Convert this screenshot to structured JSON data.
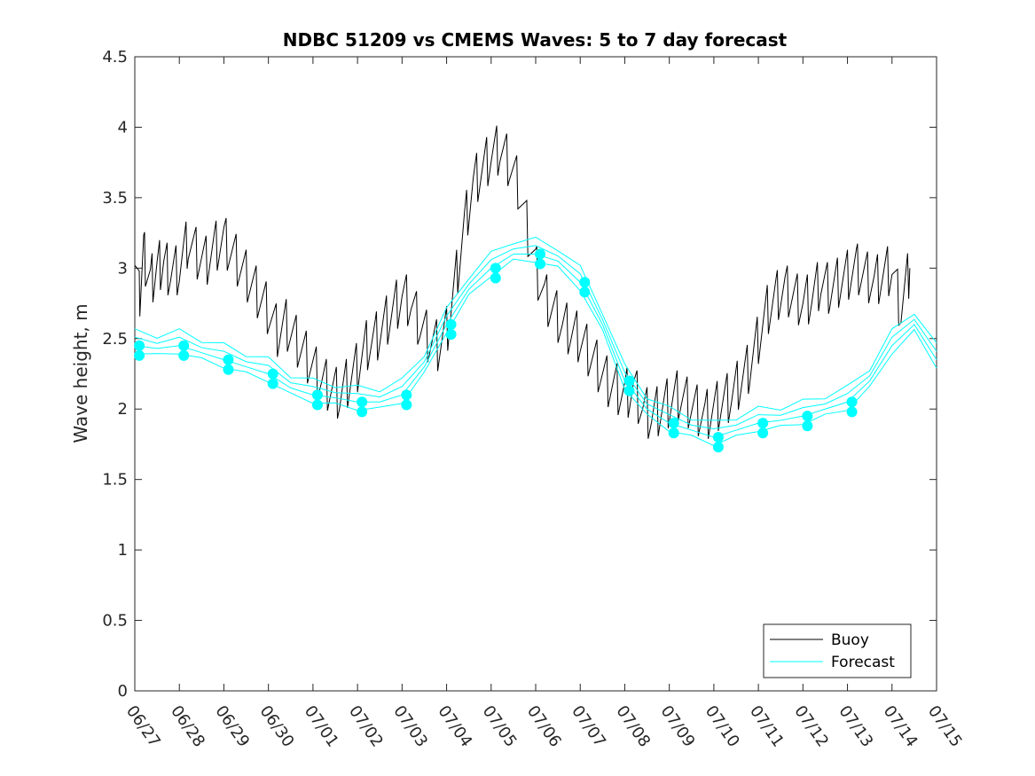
{
  "chart_data": {
    "type": "line",
    "title": "NDBC 51209 vs CMEMS Waves: 5 to 7 day forecast",
    "xlabel": "",
    "ylabel": "Wave height, m",
    "xlim": [
      "06/27",
      "07/15"
    ],
    "ylim": [
      0,
      4.5
    ],
    "x_ticks": [
      "06/27",
      "06/28",
      "06/29",
      "06/30",
      "07/01",
      "07/02",
      "07/03",
      "07/04",
      "07/05",
      "07/06",
      "07/07",
      "07/08",
      "07/09",
      "07/10",
      "07/11",
      "07/12",
      "07/13",
      "07/14",
      "07/15"
    ],
    "y_ticks": [
      "0",
      "0.5",
      "1",
      "1.5",
      "2",
      "2.5",
      "3",
      "3.5",
      "4",
      "4.5"
    ],
    "grid": false,
    "legend_position": "bottom-right",
    "legend": [
      "Buoy",
      "Forecast"
    ],
    "colors": {
      "buoy": "#000000",
      "forecast": "#00ffff"
    },
    "series": [
      {
        "name": "Buoy",
        "x_days": [
          0,
          0.1,
          0.2,
          0.35,
          0.5,
          0.65,
          0.8,
          1.0,
          1.2,
          1.4,
          1.6,
          1.8,
          2.0,
          2.2,
          2.4,
          2.6,
          2.8,
          3.0,
          3.2,
          3.4,
          3.6,
          3.8,
          4.0,
          4.2,
          4.4,
          4.6,
          4.8,
          5.0,
          5.2,
          5.4,
          5.6,
          5.8,
          6.0,
          6.2,
          6.4,
          6.6,
          6.8,
          7.0,
          7.2,
          7.4,
          7.6,
          7.8,
          8.0,
          8.2,
          8.4,
          8.6,
          8.8,
          9.0,
          9.2,
          9.4,
          9.6,
          9.8,
          10.0,
          10.2,
          10.4,
          10.6,
          10.8,
          11.0,
          11.2,
          11.4,
          11.6,
          11.8,
          12.0,
          12.2,
          12.4,
          12.6,
          12.8,
          13.0,
          13.2,
          13.4,
          13.6,
          13.8,
          14.0,
          14.2,
          14.4,
          14.6,
          14.8,
          15.0,
          15.2,
          15.4,
          15.6,
          15.8,
          16.0,
          16.2,
          16.4,
          16.6,
          16.8,
          17.0,
          17.2,
          17.4
        ],
        "values": [
          3.2,
          2.8,
          3.1,
          2.9,
          3.0,
          3.05,
          2.95,
          3.0,
          3.2,
          3.1,
          3.05,
          3.15,
          3.2,
          3.1,
          3.0,
          2.9,
          2.8,
          2.7,
          2.55,
          2.6,
          2.5,
          2.4,
          2.3,
          2.2,
          2.15,
          2.1,
          2.2,
          2.3,
          2.45,
          2.5,
          2.6,
          2.7,
          2.8,
          2.75,
          2.6,
          2.5,
          2.45,
          2.55,
          2.9,
          3.3,
          3.6,
          3.7,
          3.8,
          3.85,
          3.75,
          3.6,
          3.3,
          3.0,
          2.8,
          2.7,
          2.6,
          2.55,
          2.5,
          2.4,
          2.3,
          2.2,
          2.15,
          2.1,
          2.15,
          2.0,
          1.95,
          2.0,
          2.05,
          2.1,
          2.05,
          2.0,
          1.95,
          2.0,
          2.05,
          2.1,
          2.2,
          2.3,
          2.5,
          2.7,
          2.8,
          2.85,
          2.8,
          2.75,
          2.8,
          2.9,
          2.85,
          2.9,
          2.95,
          3.0,
          2.95,
          2.9,
          2.95,
          3.0,
          2.7,
          3.0
        ]
      },
      {
        "name": "Forecast",
        "x_days": [
          0,
          0.5,
          1.0,
          1.5,
          2.0,
          2.5,
          3.0,
          3.5,
          4.0,
          4.5,
          5.0,
          5.5,
          6.0,
          6.5,
          7.0,
          7.5,
          8.0,
          8.5,
          9.0,
          9.5,
          10.0,
          10.5,
          11.0,
          11.5,
          12.0,
          12.5,
          13.0,
          13.5,
          14.0,
          14.5,
          15.0,
          15.5,
          16.0,
          16.5,
          17.0,
          17.5,
          18.0
        ],
        "values": [
          2.45,
          2.43,
          2.45,
          2.4,
          2.35,
          2.3,
          2.25,
          2.15,
          2.1,
          2.08,
          2.05,
          2.05,
          2.1,
          2.3,
          2.6,
          2.85,
          3.0,
          3.1,
          3.1,
          3.05,
          2.9,
          2.6,
          2.2,
          2.0,
          1.9,
          1.85,
          1.8,
          1.85,
          1.9,
          1.92,
          1.95,
          2.0,
          2.05,
          2.2,
          2.45,
          2.6,
          2.35
        ]
      }
    ]
  }
}
